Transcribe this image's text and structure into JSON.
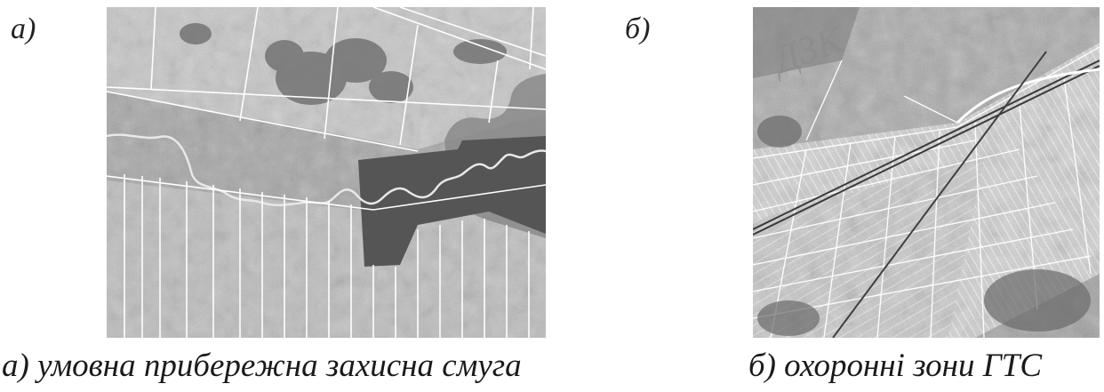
{
  "panels": [
    {
      "letter": "а)",
      "caption": "а) умовна прибережна захисна смуга"
    },
    {
      "letter": "б)",
      "caption": "б) охоронні зони ГТС"
    }
  ],
  "watermark": "ДЗК"
}
